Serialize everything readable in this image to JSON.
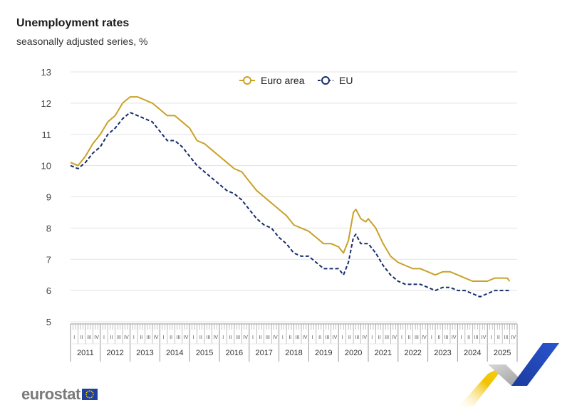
{
  "header": {
    "title": "Unemployment rates",
    "subtitle": "seasonally adjusted series, %"
  },
  "branding": {
    "logo_text": "eurostat",
    "flag_icon": "eu-flag-icon"
  },
  "colors": {
    "euro_area": "#c9a227",
    "eu": "#172d6b",
    "grid": "#e3e3e3",
    "axis": "#999999"
  },
  "chart_data": {
    "type": "line",
    "title": "Unemployment rates",
    "subtitle": "seasonally adjusted series, %",
    "xlabel": "",
    "ylabel": "",
    "ylim": [
      5,
      13
    ],
    "yticks": [
      5,
      6,
      7,
      8,
      9,
      10,
      11,
      12,
      13
    ],
    "grid": true,
    "legend_position": "top-center",
    "years": [
      "2011",
      "2012",
      "2013",
      "2014",
      "2015",
      "2016",
      "2017",
      "2018",
      "2019",
      "2020",
      "2021",
      "2022",
      "2023",
      "2024",
      "2025"
    ],
    "quarters": [
      "I",
      "II",
      "III",
      "IV"
    ],
    "x_start": "2011-01",
    "x_end": "2025-12",
    "series": [
      {
        "name": "Euro area",
        "style": "solid",
        "points": [
          [
            "2011-01",
            10.1
          ],
          [
            "2011-04",
            10.0
          ],
          [
            "2011-07",
            10.3
          ],
          [
            "2011-10",
            10.7
          ],
          [
            "2012-01",
            11.0
          ],
          [
            "2012-04",
            11.4
          ],
          [
            "2012-07",
            11.6
          ],
          [
            "2012-10",
            12.0
          ],
          [
            "2013-01",
            12.2
          ],
          [
            "2013-04",
            12.2
          ],
          [
            "2013-07",
            12.1
          ],
          [
            "2013-10",
            12.0
          ],
          [
            "2014-01",
            11.8
          ],
          [
            "2014-04",
            11.6
          ],
          [
            "2014-07",
            11.6
          ],
          [
            "2014-10",
            11.4
          ],
          [
            "2015-01",
            11.2
          ],
          [
            "2015-04",
            10.8
          ],
          [
            "2015-07",
            10.7
          ],
          [
            "2015-10",
            10.5
          ],
          [
            "2016-01",
            10.3
          ],
          [
            "2016-04",
            10.1
          ],
          [
            "2016-07",
            9.9
          ],
          [
            "2016-10",
            9.8
          ],
          [
            "2017-01",
            9.5
          ],
          [
            "2017-04",
            9.2
          ],
          [
            "2017-07",
            9.0
          ],
          [
            "2017-10",
            8.8
          ],
          [
            "2018-01",
            8.6
          ],
          [
            "2018-04",
            8.4
          ],
          [
            "2018-07",
            8.1
          ],
          [
            "2018-10",
            8.0
          ],
          [
            "2019-01",
            7.9
          ],
          [
            "2019-04",
            7.7
          ],
          [
            "2019-07",
            7.5
          ],
          [
            "2019-10",
            7.5
          ],
          [
            "2020-01",
            7.4
          ],
          [
            "2020-03",
            7.2
          ],
          [
            "2020-05",
            7.6
          ],
          [
            "2020-07",
            8.5
          ],
          [
            "2020-08",
            8.6
          ],
          [
            "2020-10",
            8.3
          ],
          [
            "2020-12",
            8.2
          ],
          [
            "2021-01",
            8.3
          ],
          [
            "2021-04",
            8.0
          ],
          [
            "2021-07",
            7.5
          ],
          [
            "2021-10",
            7.1
          ],
          [
            "2022-01",
            6.9
          ],
          [
            "2022-04",
            6.8
          ],
          [
            "2022-07",
            6.7
          ],
          [
            "2022-10",
            6.7
          ],
          [
            "2023-01",
            6.6
          ],
          [
            "2023-04",
            6.5
          ],
          [
            "2023-07",
            6.6
          ],
          [
            "2023-10",
            6.6
          ],
          [
            "2024-01",
            6.5
          ],
          [
            "2024-04",
            6.4
          ],
          [
            "2024-07",
            6.3
          ],
          [
            "2024-10",
            6.3
          ],
          [
            "2025-01",
            6.3
          ],
          [
            "2025-04",
            6.4
          ],
          [
            "2025-07",
            6.4
          ],
          [
            "2025-09",
            6.4
          ],
          [
            "2025-10",
            6.3
          ]
        ]
      },
      {
        "name": "EU",
        "style": "dashed",
        "points": [
          [
            "2011-01",
            10.0
          ],
          [
            "2011-04",
            9.9
          ],
          [
            "2011-07",
            10.1
          ],
          [
            "2011-10",
            10.4
          ],
          [
            "2012-01",
            10.6
          ],
          [
            "2012-04",
            11.0
          ],
          [
            "2012-07",
            11.2
          ],
          [
            "2012-10",
            11.5
          ],
          [
            "2013-01",
            11.7
          ],
          [
            "2013-04",
            11.6
          ],
          [
            "2013-07",
            11.5
          ],
          [
            "2013-10",
            11.4
          ],
          [
            "2014-01",
            11.1
          ],
          [
            "2014-04",
            10.8
          ],
          [
            "2014-07",
            10.8
          ],
          [
            "2014-10",
            10.6
          ],
          [
            "2015-01",
            10.3
          ],
          [
            "2015-04",
            10.0
          ],
          [
            "2015-07",
            9.8
          ],
          [
            "2015-10",
            9.6
          ],
          [
            "2016-01",
            9.4
          ],
          [
            "2016-04",
            9.2
          ],
          [
            "2016-07",
            9.1
          ],
          [
            "2016-10",
            8.9
          ],
          [
            "2017-01",
            8.6
          ],
          [
            "2017-04",
            8.3
          ],
          [
            "2017-07",
            8.1
          ],
          [
            "2017-10",
            8.0
          ],
          [
            "2018-01",
            7.7
          ],
          [
            "2018-04",
            7.5
          ],
          [
            "2018-07",
            7.2
          ],
          [
            "2018-10",
            7.1
          ],
          [
            "2019-01",
            7.1
          ],
          [
            "2019-04",
            6.9
          ],
          [
            "2019-07",
            6.7
          ],
          [
            "2019-10",
            6.7
          ],
          [
            "2020-01",
            6.7
          ],
          [
            "2020-03",
            6.5
          ],
          [
            "2020-05",
            6.9
          ],
          [
            "2020-07",
            7.7
          ],
          [
            "2020-08",
            7.8
          ],
          [
            "2020-10",
            7.5
          ],
          [
            "2020-12",
            7.5
          ],
          [
            "2021-01",
            7.5
          ],
          [
            "2021-04",
            7.2
          ],
          [
            "2021-07",
            6.8
          ],
          [
            "2021-10",
            6.5
          ],
          [
            "2022-01",
            6.3
          ],
          [
            "2022-04",
            6.2
          ],
          [
            "2022-07",
            6.2
          ],
          [
            "2022-10",
            6.2
          ],
          [
            "2023-01",
            6.1
          ],
          [
            "2023-04",
            6.0
          ],
          [
            "2023-07",
            6.1
          ],
          [
            "2023-10",
            6.1
          ],
          [
            "2024-01",
            6.0
          ],
          [
            "2024-04",
            6.0
          ],
          [
            "2024-07",
            5.9
          ],
          [
            "2024-10",
            5.8
          ],
          [
            "2025-01",
            5.9
          ],
          [
            "2025-04",
            6.0
          ],
          [
            "2025-07",
            6.0
          ],
          [
            "2025-10",
            6.0
          ]
        ]
      }
    ]
  }
}
